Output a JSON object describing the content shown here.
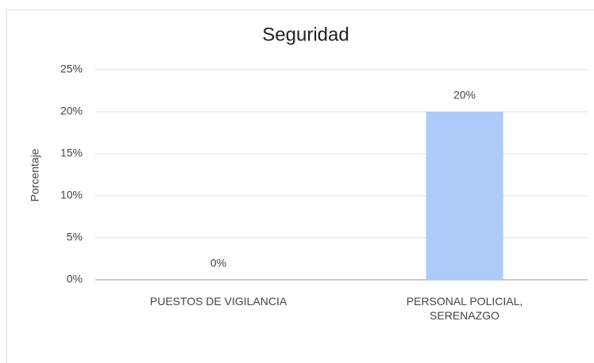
{
  "chart_data": {
    "type": "bar",
    "title": "Seguridad",
    "y_label": "Porcentaje",
    "categories": [
      "PUESTOS DE VIGILANCIA",
      "PERSONAL POLICIAL, SERENAZGO"
    ],
    "values": [
      0,
      20
    ],
    "value_labels": [
      "0%",
      "20%"
    ],
    "color": "#aecbfa",
    "ylim": [
      0,
      25
    ],
    "yticks": [
      {
        "value": 0,
        "label": "0%"
      },
      {
        "value": 5,
        "label": "5%"
      },
      {
        "value": 10,
        "label": "10%"
      },
      {
        "value": 15,
        "label": "15%"
      },
      {
        "value": 20,
        "label": "20%"
      },
      {
        "value": 25,
        "label": "25%"
      }
    ],
    "grid": true
  }
}
